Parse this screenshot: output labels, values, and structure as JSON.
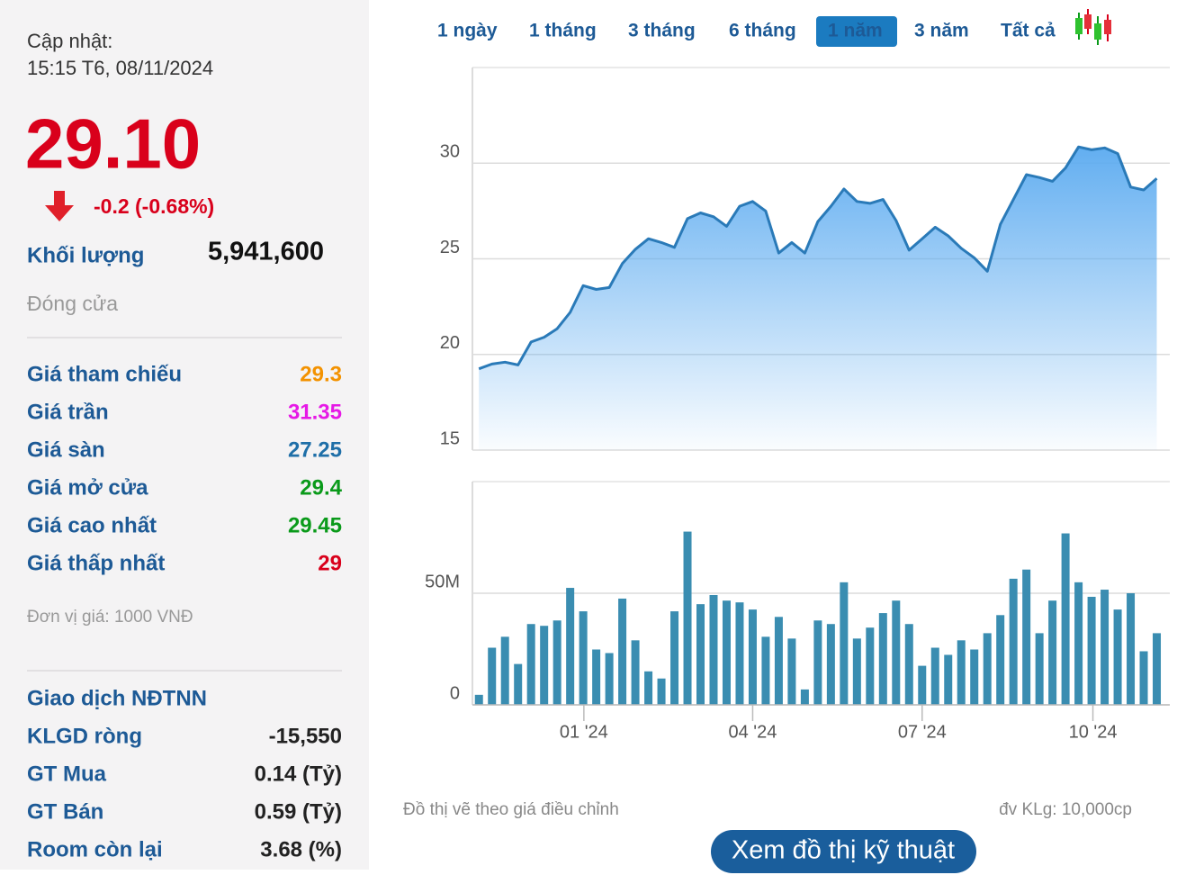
{
  "header": {
    "update_label": "Cập nhật:",
    "update_time": "15:15 T6, 08/11/2024",
    "price": "29.10",
    "change": "-0.2 (-0.68%)",
    "volume_label": "Khối lượng",
    "volume": "5,941,600",
    "status": "Đóng cửa"
  },
  "prices": {
    "rows": [
      {
        "label": "Giá tham chiếu",
        "value": "29.3",
        "color": "#f39200"
      },
      {
        "label": "Giá trần",
        "value": "31.35",
        "color": "#e619e6"
      },
      {
        "label": "Giá sàn",
        "value": "27.25",
        "color": "#1f6fa8"
      },
      {
        "label": "Giá mở cửa",
        "value": "29.4",
        "color": "#0a9a1a"
      },
      {
        "label": "Giá cao nhất",
        "value": "29.45",
        "color": "#0a9a1a"
      },
      {
        "label": "Giá thấp nhất",
        "value": "29",
        "color": "#d9001b"
      }
    ],
    "unit": "Đơn vị giá: 1000 VNĐ"
  },
  "foreign": {
    "title": "Giao dịch NĐTNN",
    "rows": [
      {
        "label": "KLGD ròng",
        "value": "-15,550"
      },
      {
        "label": "GT Mua",
        "value": "0.14 (Tỷ)"
      },
      {
        "label": "GT Bán",
        "value": "0.59 (Tỷ)"
      },
      {
        "label": "Room còn lại",
        "value": "3.68 (%)"
      }
    ]
  },
  "tabs": {
    "items": [
      "1 ngày",
      "1 tháng",
      "3 tháng",
      "6 tháng",
      "1 năm",
      "3 năm",
      "Tất cả"
    ],
    "active": 4
  },
  "chart_data": [
    {
      "type": "area",
      "color": "#2a7ab8",
      "categories": [
        null,
        null,
        null,
        null,
        null,
        null,
        null,
        null,
        null,
        null,
        null,
        null,
        null,
        null,
        null,
        null,
        null,
        null,
        null,
        null,
        null,
        null,
        null,
        null,
        null,
        null,
        null,
        null,
        null,
        null,
        null,
        null,
        null,
        null,
        null,
        null,
        null,
        null,
        null,
        null,
        null,
        null,
        null,
        null,
        null,
        null,
        null,
        null,
        null,
        null,
        null,
        null,
        null
      ],
      "values": [
        19.25,
        19.5,
        19.6,
        19.45,
        20.65,
        20.9,
        21.35,
        22.2,
        23.6,
        23.4,
        23.5,
        24.75,
        25.5,
        26.05,
        25.85,
        25.6,
        27.1,
        27.4,
        27.2,
        26.7,
        27.75,
        28.0,
        27.5,
        25.3,
        25.85,
        25.3,
        26.95,
        27.75,
        28.65,
        28.0,
        27.9,
        28.1,
        27.0,
        25.45,
        26.05,
        26.65,
        26.2,
        25.55,
        25.05,
        24.35,
        26.8,
        28.1,
        29.4,
        29.25,
        29.05,
        29.75,
        30.85,
        30.7,
        30.8,
        30.5,
        28.75,
        28.6,
        29.2
      ],
      "xlim": [
        -0.5,
        53
      ],
      "ylim": [
        15,
        35
      ],
      "yticks": [
        15,
        20,
        25,
        30
      ],
      "grid": true
    },
    {
      "type": "bar",
      "color": "#3a8db1",
      "categories": [
        null,
        null,
        null,
        null,
        null,
        null,
        null,
        null,
        null,
        null,
        null,
        null,
        null,
        null,
        null,
        null,
        null,
        null,
        null,
        null,
        null,
        null,
        null,
        null,
        null,
        null,
        null,
        null,
        null,
        null,
        null,
        null,
        null,
        null,
        null,
        null,
        null,
        null,
        null,
        null,
        null,
        null,
        null,
        null,
        null,
        null,
        null,
        null,
        null,
        null,
        null,
        null,
        null
      ],
      "values": [
        4.5,
        25.6,
        30.5,
        18.3,
        36.2,
        35.4,
        37.8,
        52.4,
        41.9,
        24.8,
        23.2,
        47.6,
        28.9,
        15,
        11.8,
        41.9,
        77.6,
        45.1,
        49.2,
        46.7,
        45.9,
        42.7,
        30.5,
        39.4,
        29.7,
        6.9,
        37.8,
        36.2,
        54.9,
        29.7,
        34.6,
        41.1,
        46.7,
        36.2,
        17.5,
        25.6,
        22.4,
        28.9,
        24.8,
        32.1,
        40.2,
        56.5,
        60.6,
        32.1,
        46.7,
        76.8,
        54.9,
        48.4,
        51.6,
        42.7,
        50,
        24,
        32.1
      ],
      "xlim": [
        -0.5,
        53
      ],
      "xticks": [
        {
          "value": 8.05,
          "label": "01 '24"
        },
        {
          "value": 21.0,
          "label": "04 '24"
        },
        {
          "value": 34.0,
          "label": "07 '24"
        },
        {
          "value": 47.1,
          "label": "10 '24"
        }
      ],
      "ylim": [
        0,
        100
      ],
      "yticks": [
        0,
        {
          "value": 50,
          "label": "50M"
        }
      ],
      "grid": true
    }
  ],
  "footer": {
    "note": "Đồ thị vẽ theo giá điều chỉnh",
    "unit": "đv KLg: 10,000cp",
    "button": "Xem đồ thị kỹ thuật"
  }
}
